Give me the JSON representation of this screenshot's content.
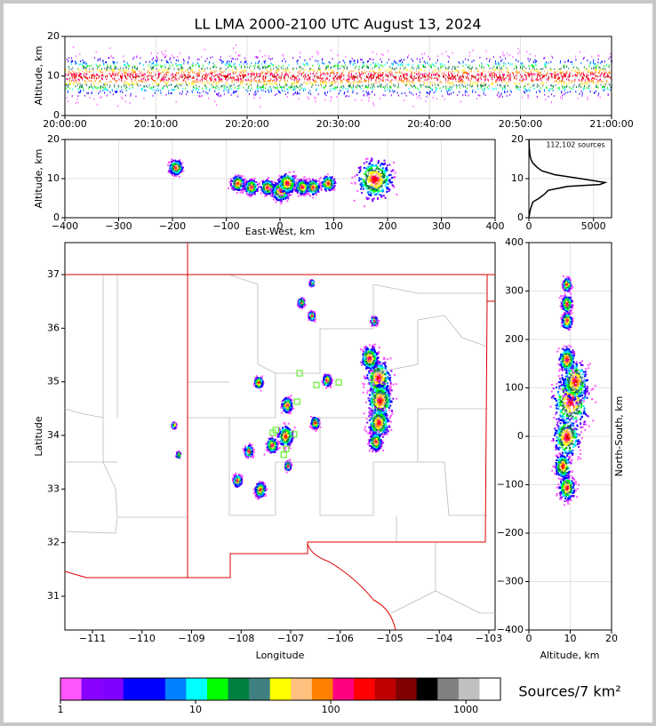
{
  "chart_data": [
    {
      "type": "time-height",
      "title": "LL LMA 2000-2100 UTC August 13, 2024",
      "ylabel": "Altitude, km",
      "xlim": [
        0,
        60
      ],
      "xticks": [
        {
          "value": 0,
          "label": "20:00:00"
        },
        {
          "value": 10,
          "label": "20:10:00"
        },
        {
          "value": 20,
          "label": "20:20:00"
        },
        {
          "value": 30,
          "label": "20:30:00"
        },
        {
          "value": 40,
          "label": "20:40:00"
        },
        {
          "value": 50,
          "label": "20:50:00"
        },
        {
          "value": 60,
          "label": "21:00:00"
        }
      ],
      "ylim": [
        0,
        20
      ],
      "yticks": [
        0,
        10,
        20
      ],
      "grid": true
    },
    {
      "type": "density",
      "xlabel": "East-West, km",
      "ylabel": "Altitude, km",
      "xlim": [
        -400,
        400
      ],
      "xticks": [
        {
          "value": -400,
          "label": "−400"
        },
        {
          "value": -300,
          "label": "−300"
        },
        {
          "value": -200,
          "label": "−200"
        },
        {
          "value": -100,
          "label": "−100"
        },
        0,
        100,
        200,
        300,
        400
      ],
      "ylim": [
        0,
        20
      ],
      "yticks": [
        0,
        10,
        20
      ],
      "grid": true,
      "x": [
        -195,
        -80,
        -55,
        -25,
        0,
        12,
        40,
        60,
        88,
        175
      ],
      "y": [
        13,
        9,
        8,
        8,
        7,
        9,
        8,
        8,
        9,
        10
      ],
      "size": [
        1.5,
        1.5,
        1.5,
        1.5,
        2,
        2,
        1.5,
        1.5,
        1.5,
        4
      ]
    },
    {
      "type": "profile",
      "annotation": "112,102 sources",
      "xlim": [
        0,
        6400
      ],
      "xticks": [
        0,
        5000
      ],
      "ylim": [
        0,
        20
      ],
      "yticks": [
        0,
        10,
        20
      ],
      "grid": true,
      "x": [
        0,
        100,
        300,
        800,
        1200,
        1500,
        3000,
        5500,
        5900,
        4000,
        2000,
        1000,
        600,
        300,
        150,
        80,
        30,
        5
      ],
      "y": [
        0,
        2,
        4,
        5,
        6,
        7,
        8,
        8.5,
        9,
        10,
        11,
        12,
        13,
        14,
        15,
        16,
        18,
        20
      ]
    },
    {
      "type": "map",
      "xlabel": "Longitude",
      "ylabel": "Latitude",
      "xlim": [
        -111.556,
        -102.874
      ],
      "xticks": [
        {
          "value": -111,
          "label": "−111"
        },
        {
          "value": -110,
          "label": "−110"
        },
        {
          "value": -109,
          "label": "−109"
        },
        {
          "value": -108,
          "label": "−108"
        },
        {
          "value": -107,
          "label": "−107"
        },
        {
          "value": -106,
          "label": "−106"
        },
        {
          "value": -105,
          "label": "−105"
        },
        {
          "value": -104,
          "label": "−104"
        },
        {
          "value": -103,
          "label": "−103"
        }
      ],
      "ylim": [
        30.37,
        37.597
      ],
      "yticks": [
        31,
        32,
        33,
        34,
        35,
        36,
        37
      ],
      "grid": false,
      "x": [
        -105.24,
        -105.21,
        -105.24,
        -105.42,
        -105.3,
        -107.09,
        -107.12,
        -107.39,
        -107.63,
        -107.86,
        -107.66,
        -106.52,
        -106.28,
        -106.59,
        -106.8,
        -106.59,
        -105.33,
        -109.37,
        -109.28,
        -108.09,
        -107.07
      ],
      "y": [
        35.08,
        34.66,
        34.25,
        35.45,
        33.9,
        34.58,
        34.0,
        33.83,
        33.0,
        33.72,
        35.0,
        34.25,
        35.04,
        36.24,
        36.49,
        36.85,
        36.15,
        34.2,
        33.65,
        33.17,
        33.45
      ],
      "size": [
        0.12,
        0.12,
        0.1,
        0.08,
        0.06,
        0.05,
        0.07,
        0.05,
        0.05,
        0.04,
        0.04,
        0.04,
        0.04,
        0.03,
        0.03,
        0.02,
        0.03,
        0.02,
        0.02,
        0.04,
        0.03
      ],
      "stations": {
        "x": [
          -106.82,
          -106.48,
          -106.03,
          -106.87,
          -107.36,
          -106.93,
          -107.09,
          -107.14,
          -107.3
        ],
        "y": [
          35.16,
          34.94,
          34.99,
          34.63,
          34.05,
          34.02,
          33.75,
          33.64,
          34.1
        ],
        "color": "#66ee33"
      }
    },
    {
      "type": "density",
      "xlabel": "Altitude, km",
      "ylabel": "North-South, km",
      "xlim": [
        0,
        20
      ],
      "xticks": [
        0,
        10,
        20
      ],
      "ylim": [
        -400,
        400
      ],
      "yticks": [
        {
          "value": -400,
          "label": "−400"
        },
        {
          "value": -300,
          "label": "−300"
        },
        {
          "value": -200,
          "label": "−200"
        },
        {
          "value": -100,
          "label": "−100"
        },
        0,
        100,
        200,
        300,
        400
      ],
      "grid": true,
      "x": [
        9,
        10,
        11,
        8,
        9,
        9,
        9,
        9,
        9
      ],
      "y": [
        0,
        75,
        115,
        -60,
        -105,
        160,
        240,
        275,
        315
      ],
      "size": [
        2.5,
        3.5,
        2.5,
        1.5,
        1.5,
        1.5,
        1,
        1,
        0.8
      ]
    },
    {
      "type": "colorbar",
      "label": "Sources/7 km²",
      "scale": "log",
      "xlim": [
        1,
        1800
      ],
      "xticks": [
        1,
        10,
        100,
        1000
      ],
      "colors": [
        "#ff55ff",
        "#8800ff",
        "#8000ff",
        "#0000ff",
        "#0000ff",
        "#0080ff",
        "#00ffff",
        "#00ff00",
        "#008040",
        "#408080",
        "#ffff00",
        "#ffc080",
        "#ff8000",
        "#ff0080",
        "#ff0000",
        "#c00000",
        "#800000",
        "#000000",
        "#808080",
        "#c0c0c0",
        "#ffffff"
      ]
    }
  ]
}
